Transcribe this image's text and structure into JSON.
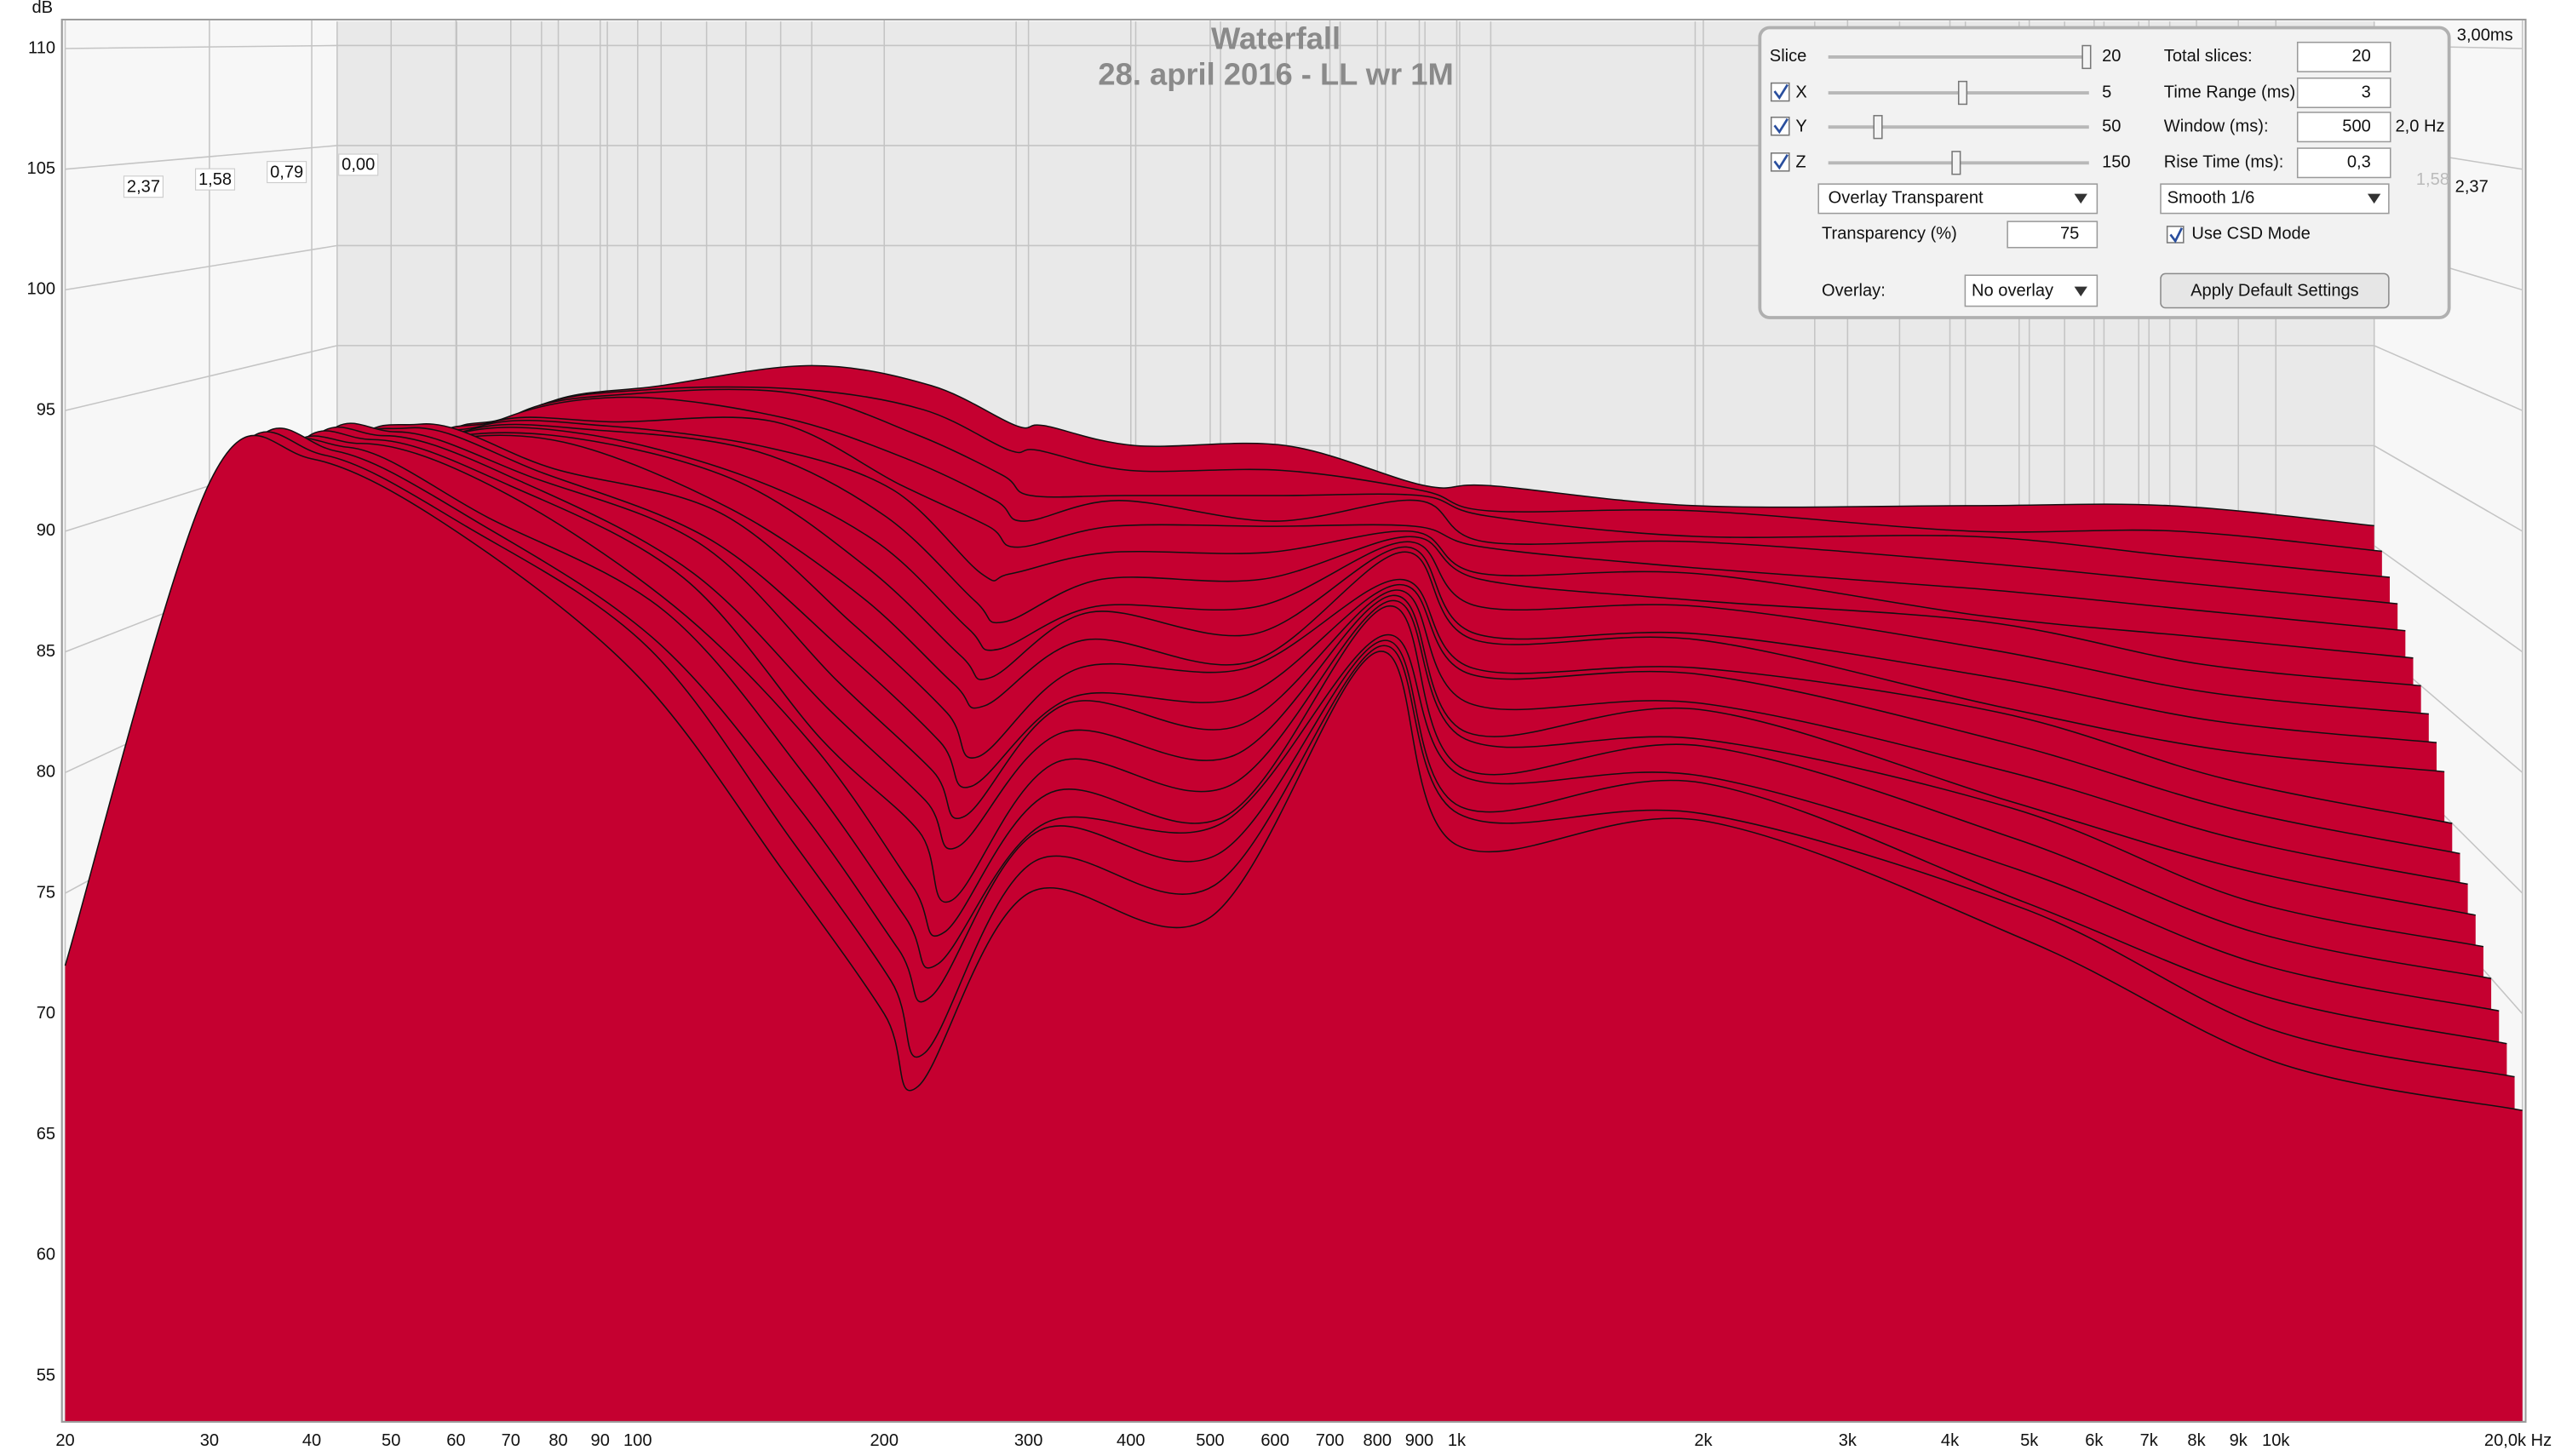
{
  "chart_data": {
    "type": "waterfall",
    "title": "Waterfall",
    "subtitle": "28. april 2016 - LL wr 1M",
    "y_label": "dB",
    "x": [
      20,
      30,
      40,
      60,
      100,
      150,
      200,
      220,
      300,
      500,
      800,
      1000,
      2000,
      5000,
      10000,
      20000
    ],
    "xlim": [
      20,
      20000
    ],
    "log_x": true,
    "xticks": [
      20,
      30,
      40,
      50,
      60,
      70,
      80,
      90,
      100,
      200,
      300,
      400,
      500,
      600,
      700,
      800,
      900,
      {
        "value": 1000,
        "label": "1k"
      },
      {
        "value": 2000,
        "label": "2k"
      },
      {
        "value": 3000,
        "label": "3k"
      },
      {
        "value": 4000,
        "label": "4k"
      },
      {
        "value": 5000,
        "label": "5k"
      },
      {
        "value": 6000,
        "label": "6k"
      },
      {
        "value": 7000,
        "label": "7k"
      },
      {
        "value": 8000,
        "label": "8k"
      },
      {
        "value": 9000,
        "label": "9k"
      },
      {
        "value": 10000,
        "label": "10k"
      },
      {
        "value": 20000,
        "label": "20,0k Hz"
      }
    ],
    "ylim": [
      53.1,
      111.2
    ],
    "yticks": [
      110,
      105,
      100,
      95,
      90,
      85,
      80,
      75,
      70,
      65,
      60,
      55
    ],
    "zlim": [
      0,
      3
    ],
    "zticks": [
      {
        "value": 0,
        "label": "0,00"
      },
      {
        "value": 0.79,
        "label": "0,79"
      },
      {
        "value": 1.58,
        "label": "1,58"
      },
      {
        "value": 2.37,
        "label": "2,37"
      },
      {
        "value": 3,
        "label": "3,00ms"
      }
    ],
    "grid": true,
    "color": "#c50030",
    "series": [
      {
        "values": [
          70,
          88,
          92,
          93,
          94,
          93,
          91,
          91,
          90,
          90,
          88,
          88,
          87,
          87,
          87,
          86
        ]
      },
      {
        "values": [
          70,
          88,
          92,
          93,
          93,
          92,
          90,
          90,
          89,
          89,
          88,
          87,
          87,
          86,
          86,
          85
        ]
      },
      {
        "values": [
          70,
          88,
          92,
          93,
          93,
          91,
          89,
          88,
          88,
          88,
          88,
          87,
          86,
          86,
          85,
          84
        ]
      },
      {
        "values": [
          70,
          89,
          92,
          93,
          92,
          90,
          88,
          87,
          88,
          87,
          88,
          86,
          86,
          85,
          84,
          83
        ]
      },
      {
        "values": [
          70,
          89,
          92,
          92,
          92,
          89,
          87,
          86,
          87,
          87,
          87,
          86,
          85,
          84,
          83,
          82
        ]
      },
      {
        "values": [
          71,
          89,
          92,
          92,
          91,
          89,
          85,
          85,
          86,
          86,
          87,
          85,
          85,
          83,
          82,
          81
        ]
      },
      {
        "values": [
          71,
          89,
          92,
          92,
          91,
          88,
          84,
          83,
          85,
          85,
          87,
          85,
          84,
          83,
          81,
          80
        ]
      },
      {
        "values": [
          71,
          89,
          92,
          92,
          90,
          87,
          83,
          82,
          84,
          84,
          87,
          84,
          84,
          82,
          80,
          79
        ]
      },
      {
        "values": [
          71,
          90,
          92,
          92,
          90,
          86,
          82,
          81,
          84,
          83,
          87,
          83,
          83,
          81,
          79,
          78
        ]
      },
      {
        "values": [
          71,
          90,
          92,
          92,
          89,
          85,
          81,
          80,
          83,
          82,
          87,
          83,
          83,
          80,
          78,
          77
        ]
      },
      {
        "values": [
          71,
          90,
          93,
          91,
          89,
          84,
          80,
          78,
          82,
          82,
          86,
          82,
          82,
          80,
          77,
          75
        ]
      },
      {
        "values": [
          71,
          90,
          93,
          91,
          88,
          83,
          79,
          77,
          81,
          81,
          86,
          82,
          82,
          79,
          76,
          74
        ]
      },
      {
        "values": [
          71,
          91,
          93,
          91,
          88,
          82,
          78,
          76,
          81,
          80,
          86,
          81,
          81,
          78,
          75,
          73
        ]
      },
      {
        "values": [
          71,
          91,
          93,
          91,
          87,
          81,
          77,
          75,
          80,
          79,
          86,
          80,
          81,
          77,
          74,
          72
        ]
      },
      {
        "values": [
          71,
          91,
          93,
          91,
          87,
          80,
          76,
          73,
          79,
          78,
          86,
          80,
          80,
          77,
          73,
          71
        ]
      },
      {
        "values": [
          72,
          91,
          93,
          91,
          86,
          80,
          74,
          72,
          78,
          77,
          86,
          79,
          80,
          76,
          72,
          70
        ]
      },
      {
        "values": [
          72,
          91,
          93,
          90,
          86,
          79,
          73,
          71,
          77,
          77,
          85,
          79,
          79,
          75,
          71,
          69
        ]
      },
      {
        "values": [
          72,
          92,
          93,
          90,
          85,
          78,
          72,
          70,
          77,
          76,
          85,
          78,
          79,
          74,
          70,
          68
        ]
      },
      {
        "values": [
          72,
          92,
          93,
          90,
          85,
          77,
          71,
          68,
          76,
          75,
          85,
          78,
          78,
          74,
          69,
          67
        ]
      },
      {
        "values": [
          72,
          92,
          93,
          90,
          84,
          76,
          70,
          67,
          75,
          74,
          85,
          77,
          78,
          73,
          68,
          66
        ]
      }
    ]
  },
  "controls": {
    "slice": {
      "label": "Slice",
      "value": "20"
    },
    "x": {
      "label": "X",
      "value": "5"
    },
    "y": {
      "label": "Y",
      "value": "50"
    },
    "z": {
      "label": "Z",
      "value": "150"
    },
    "view_mode": "Overlay Transparent",
    "transparency": {
      "label": "Transparency (%)",
      "value": "75"
    },
    "overlay": {
      "label": "Overlay:",
      "value": "No overlay"
    },
    "total_slices": {
      "label": "Total slices:",
      "value": "20"
    },
    "time_range": {
      "label": "Time Range (ms):",
      "value": "3"
    },
    "window": {
      "label": "Window (ms):",
      "value": "500",
      "resolution": "2,0 Hz"
    },
    "rise_time": {
      "label": "Rise Time (ms):",
      "value": "0,3"
    },
    "smoothing": "Smooth 1/6",
    "csd_mode": "Use CSD Mode",
    "apply_button": "Apply Default Settings"
  }
}
